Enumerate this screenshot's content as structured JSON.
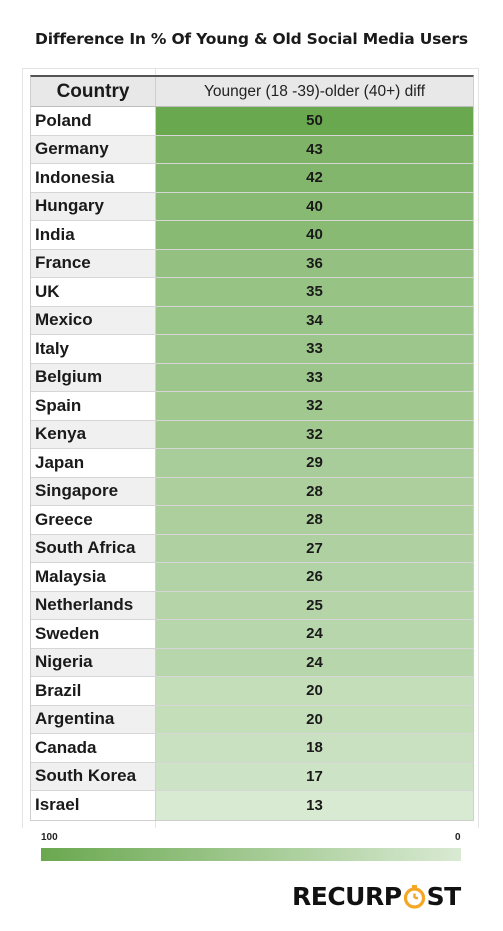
{
  "title": "Difference In % Of Young & Old Social Media Users",
  "chart_data": {
    "type": "table",
    "columns": [
      "Country",
      "Younger (18 -39)-older (40+) diff"
    ],
    "rows": [
      {
        "country": "Poland",
        "value": 50
      },
      {
        "country": "Germany",
        "value": 43
      },
      {
        "country": "Indonesia",
        "value": 42
      },
      {
        "country": "Hungary",
        "value": 40
      },
      {
        "country": "India",
        "value": 40
      },
      {
        "country": "France",
        "value": 36
      },
      {
        "country": "UK",
        "value": 35
      },
      {
        "country": "Mexico",
        "value": 34
      },
      {
        "country": "Italy",
        "value": 33
      },
      {
        "country": "Belgium",
        "value": 33
      },
      {
        "country": "Spain",
        "value": 32
      },
      {
        "country": "Kenya",
        "value": 32
      },
      {
        "country": "Japan",
        "value": 29
      },
      {
        "country": "Singapore",
        "value": 28
      },
      {
        "country": "Greece",
        "value": 28
      },
      {
        "country": "South Africa",
        "value": 27
      },
      {
        "country": "Malaysia",
        "value": 26
      },
      {
        "country": "Netherlands",
        "value": 25
      },
      {
        "country": "Sweden",
        "value": 24
      },
      {
        "country": "Nigeria",
        "value": 24
      },
      {
        "country": "Brazil",
        "value": 20
      },
      {
        "country": "Argentina",
        "value": 20
      },
      {
        "country": "Canada",
        "value": 18
      },
      {
        "country": "South Korea",
        "value": 17
      },
      {
        "country": "Israel",
        "value": 13
      }
    ],
    "color_scale": {
      "min_label": "0",
      "max_label": "100",
      "min_color": "#d9ead3",
      "max_color": "#6aa84f"
    }
  },
  "brand": {
    "logo_left": "RECURP",
    "logo_right": "ST",
    "accent_color": "#f5a623"
  }
}
